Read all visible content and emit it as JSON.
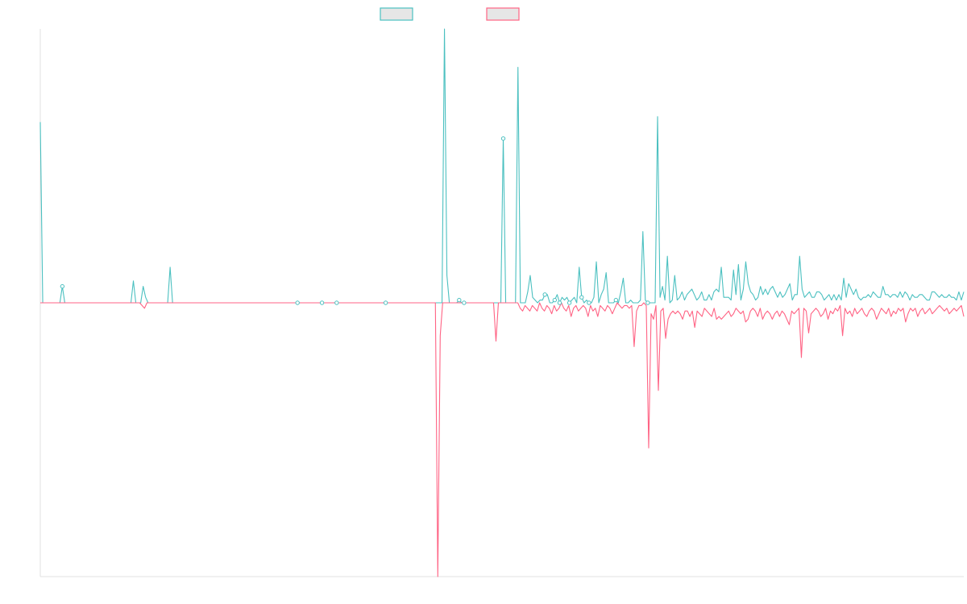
{
  "chart_data": {
    "type": "line",
    "title": "",
    "xlabel": "",
    "ylabel": "",
    "grid": false,
    "legend": "top-center",
    "ylim": [
      -100,
      100
    ],
    "series": [
      {
        "color": "#4bc0c0",
        "values": [
          66,
          0,
          0,
          0,
          0,
          0,
          0,
          0,
          0,
          6,
          0,
          0,
          0,
          0,
          0,
          0,
          0,
          0,
          0,
          0,
          0,
          0,
          0,
          0,
          0,
          0,
          0,
          0,
          0,
          0,
          0,
          0,
          0,
          0,
          0,
          0,
          0,
          0,
          8,
          0,
          0,
          0,
          6,
          2,
          0,
          0,
          0,
          0,
          0,
          0,
          0,
          0,
          0,
          13,
          0,
          0,
          0,
          0,
          0,
          0,
          0,
          0,
          0,
          0,
          0,
          0,
          0,
          0,
          0,
          0,
          0,
          0,
          0,
          0,
          0,
          0,
          0,
          0,
          0,
          0,
          0,
          0,
          0,
          0,
          0,
          0,
          0,
          0,
          0,
          0,
          0,
          0,
          0,
          0,
          0,
          0,
          0,
          0,
          0,
          0,
          0,
          0,
          0,
          0,
          0,
          0,
          0,
          0,
          0,
          0,
          0,
          0,
          0,
          0,
          0,
          0,
          0,
          0,
          0,
          0,
          0,
          0,
          0,
          0,
          0,
          0,
          0,
          0,
          0,
          0,
          0,
          0,
          0,
          0,
          0,
          0,
          0,
          0,
          0,
          0,
          0,
          0,
          0,
          0,
          0,
          0,
          0,
          0,
          0,
          0,
          0,
          0,
          0,
          0,
          0,
          0,
          0,
          0,
          0,
          0,
          0,
          0,
          0,
          0,
          0,
          100,
          10,
          0,
          0,
          0,
          0,
          1,
          0,
          0,
          0,
          0,
          0,
          0,
          0,
          0,
          0,
          0,
          0,
          0,
          0,
          0,
          0,
          0,
          0,
          60,
          0,
          0,
          0,
          0,
          0,
          86,
          0,
          0,
          0,
          4,
          10,
          2,
          1,
          0,
          1,
          1,
          3,
          3,
          0,
          0,
          1,
          3,
          0,
          2,
          1,
          2,
          0,
          1,
          2,
          0,
          13,
          2,
          0,
          1,
          0,
          0,
          2,
          15,
          0,
          3,
          5,
          11,
          0,
          0,
          0,
          1,
          0,
          4,
          9,
          0,
          0,
          1,
          0,
          0,
          0,
          1,
          26,
          1,
          0,
          0,
          0,
          0,
          68,
          2,
          6,
          1,
          17,
          0,
          1,
          10,
          1,
          2,
          4,
          1,
          3,
          4,
          5,
          3,
          1,
          2,
          4,
          1,
          1,
          3,
          1,
          4,
          5,
          4,
          13,
          2,
          2,
          2,
          1,
          12,
          3,
          14,
          1,
          5,
          15,
          7,
          4,
          3,
          1,
          2,
          6,
          3,
          5,
          3,
          5,
          6,
          4,
          2,
          4,
          2,
          3,
          5,
          7,
          1,
          3,
          3,
          17,
          5,
          2,
          3,
          4,
          2,
          2,
          4,
          4,
          3,
          1,
          2,
          3,
          1,
          3,
          1,
          3,
          1,
          9,
          2,
          7,
          5,
          3,
          5,
          2,
          1,
          2,
          2,
          3,
          2,
          4,
          3,
          2,
          2,
          6,
          3,
          3,
          2,
          3,
          3,
          2,
          4,
          2,
          4,
          3,
          1,
          3,
          2,
          2,
          3,
          3,
          2,
          1,
          1,
          4,
          4,
          3,
          2,
          3,
          2,
          2,
          3,
          2,
          2,
          1,
          4,
          1,
          4
        ]
      },
      {
        "color": "#ff6384",
        "values": [
          0,
          0,
          0,
          0,
          0,
          0,
          0,
          0,
          0,
          0,
          0,
          0,
          0,
          0,
          0,
          0,
          0,
          0,
          0,
          0,
          0,
          0,
          0,
          0,
          0,
          0,
          0,
          0,
          0,
          0,
          0,
          0,
          0,
          0,
          0,
          0,
          0,
          0,
          0,
          0,
          0,
          0,
          -1,
          -2,
          0,
          0,
          0,
          0,
          0,
          0,
          0,
          0,
          0,
          0,
          0,
          0,
          0,
          0,
          0,
          0,
          0,
          0,
          0,
          0,
          0,
          0,
          0,
          0,
          0,
          0,
          0,
          0,
          0,
          0,
          0,
          0,
          0,
          0,
          0,
          0,
          0,
          0,
          0,
          0,
          0,
          0,
          0,
          0,
          0,
          0,
          0,
          0,
          0,
          0,
          0,
          0,
          0,
          0,
          0,
          0,
          0,
          0,
          0,
          0,
          0,
          0,
          0,
          0,
          0,
          0,
          0,
          0,
          0,
          0,
          0,
          0,
          0,
          0,
          0,
          0,
          0,
          0,
          0,
          0,
          0,
          0,
          0,
          0,
          0,
          0,
          0,
          0,
          0,
          0,
          0,
          0,
          0,
          0,
          0,
          0,
          0,
          0,
          0,
          0,
          0,
          0,
          0,
          0,
          0,
          0,
          0,
          0,
          0,
          0,
          0,
          0,
          0,
          0,
          0,
          0,
          0,
          0,
          0,
          0,
          -100,
          -12,
          0,
          0,
          0,
          0,
          0,
          0,
          0,
          0,
          0,
          0,
          0,
          0,
          0,
          0,
          0,
          0,
          0,
          0,
          0,
          0,
          0,
          0,
          -14,
          0,
          0,
          0,
          0,
          0,
          0,
          0,
          0,
          0,
          -2,
          -3,
          -1,
          -2,
          -3,
          -1,
          -2,
          -3,
          0,
          -2,
          -3,
          -1,
          -2,
          -4,
          -1,
          -3,
          -2,
          0,
          -2,
          -3,
          -1,
          -5,
          -2,
          -1,
          -3,
          -2,
          -1,
          -2,
          -5,
          -1,
          -3,
          -2,
          -5,
          -1,
          -2,
          -3,
          -1,
          -2,
          -4,
          -2,
          0,
          -1,
          -2,
          -1,
          -1,
          -2,
          -1,
          -16,
          -3,
          -1,
          -1,
          0,
          -1,
          -53,
          -4,
          -6,
          -1,
          -32,
          -3,
          -2,
          -13,
          -6,
          -4,
          -3,
          -4,
          -3,
          -4,
          -6,
          -3,
          -3,
          -5,
          -3,
          -9,
          -3,
          -4,
          -5,
          -2,
          -3,
          -4,
          -5,
          -2,
          -6,
          -5,
          -6,
          -5,
          -4,
          -3,
          -5,
          -4,
          -2,
          -3,
          -4,
          -3,
          -7,
          -6,
          -3,
          -2,
          -3,
          -5,
          -2,
          -6,
          -4,
          -3,
          -4,
          -6,
          -4,
          -3,
          -5,
          -3,
          -4,
          -6,
          -8,
          -3,
          -4,
          -3,
          -2,
          -20,
          -2,
          -3,
          -11,
          -4,
          -3,
          -2,
          -3,
          -5,
          -4,
          -2,
          -6,
          -3,
          -4,
          -2,
          -3,
          -1,
          -12,
          -2,
          -4,
          -3,
          -5,
          -2,
          -4,
          -3,
          -2,
          -4,
          -5,
          -3,
          -2,
          -3,
          -6,
          -4,
          -2,
          -3,
          -4,
          -2,
          -5,
          -3,
          -4,
          -2,
          -3,
          -2,
          -7,
          -4,
          -2,
          -3,
          -2,
          -5,
          -3,
          -2,
          -4,
          -3,
          -2,
          -4,
          -3,
          -2,
          -1,
          -2,
          -3,
          -2,
          -4,
          -3,
          -2,
          -3,
          -2,
          -1,
          -5
        ]
      }
    ],
    "markers": [
      {
        "series": 0,
        "index": 9
      },
      {
        "series": 0,
        "index": 105
      },
      {
        "series": 0,
        "index": 115
      },
      {
        "series": 0,
        "index": 121
      },
      {
        "series": 0,
        "index": 141
      },
      {
        "series": 0,
        "index": 171
      },
      {
        "series": 0,
        "index": 173
      },
      {
        "series": 0,
        "index": 189
      },
      {
        "series": 0,
        "index": 206
      },
      {
        "series": 0,
        "index": 210
      },
      {
        "series": 0,
        "index": 212
      },
      {
        "series": 0,
        "index": 216
      },
      {
        "series": 0,
        "index": 221
      },
      {
        "series": 0,
        "index": 224
      },
      {
        "series": 0,
        "index": 235
      },
      {
        "series": 0,
        "index": 248
      }
    ]
  }
}
